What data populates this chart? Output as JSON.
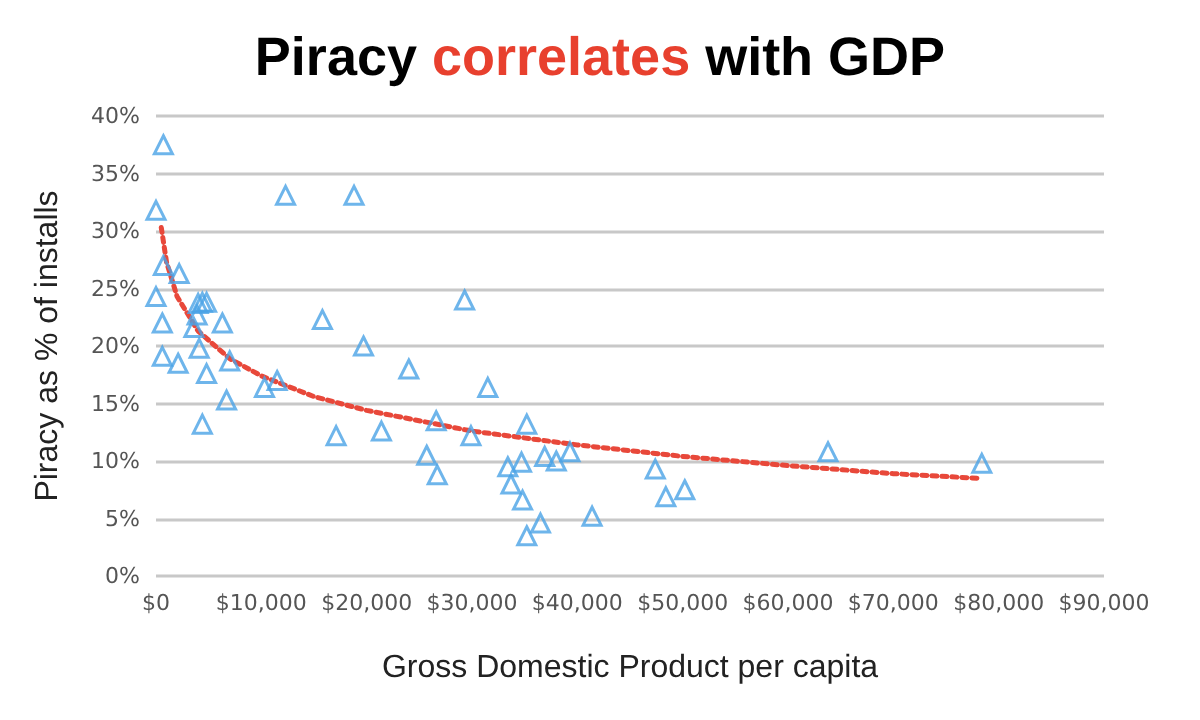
{
  "chart_data": {
    "type": "scatter",
    "title": "Piracy correlates with GDP",
    "xlabel": "Gross Domestic Product per capita",
    "ylabel": "Piracy as % of installs",
    "xlim": [
      0,
      90000
    ],
    "xticks": [
      {
        "value": 0,
        "label": "$0"
      },
      {
        "value": 10000,
        "label": "$10,000"
      },
      {
        "value": 20000,
        "label": "$20,000"
      },
      {
        "value": 30000,
        "label": "$30,000"
      },
      {
        "value": 40000,
        "label": "$40,000"
      },
      {
        "value": 50000,
        "label": "$50,000"
      },
      {
        "value": 60000,
        "label": "$60,000"
      },
      {
        "value": 70000,
        "label": "$70,000"
      },
      {
        "value": 80000,
        "label": "$80,000"
      },
      {
        "value": 90000,
        "label": "$90,000"
      }
    ],
    "ylim": [
      0,
      40
    ],
    "yticks": [
      {
        "value": 0,
        "label": "0%"
      },
      {
        "value": 5,
        "label": "5%"
      },
      {
        "value": 10,
        "label": "10%"
      },
      {
        "value": 15,
        "label": "15%"
      },
      {
        "value": 20,
        "label": "20%"
      },
      {
        "value": 25,
        "label": "25%"
      },
      {
        "value": 30,
        "label": "30%"
      },
      {
        "value": 35,
        "label": "35%"
      },
      {
        "value": 40,
        "label": "40%"
      }
    ],
    "grid": "y",
    "series": [
      {
        "color": "#4aa3e6",
        "marker": "triangle",
        "x": [
          700,
          12300,
          18800,
          0,
          700,
          2200,
          0,
          4000,
          4400,
          4800,
          3900,
          600,
          3600,
          6300,
          15800,
          19700,
          600,
          2100,
          4100,
          4800,
          7000,
          6700,
          10300,
          11500,
          4400,
          17100,
          21400,
          24000,
          29300,
          31500,
          26600,
          29900,
          35200,
          25700,
          26700,
          33400,
          34700,
          33700,
          34800,
          35200,
          36500,
          36900,
          38000,
          39300,
          41400,
          47400,
          48400,
          50200,
          63800,
          78400
        ],
        "values": [
          37.5,
          33.1,
          33.1,
          31.8,
          27,
          26.3,
          24.3,
          23.7,
          23.8,
          23.8,
          22.7,
          22,
          21.6,
          22,
          22.3,
          20,
          19.1,
          18.5,
          19.8,
          17.6,
          18.7,
          15.3,
          16.4,
          17,
          13.2,
          12.2,
          12.6,
          18,
          24,
          16.4,
          13.5,
          12.2,
          13.2,
          10.5,
          8.8,
          9.5,
          9.9,
          8,
          6.6,
          3.5,
          4.6,
          10.4,
          10,
          10.8,
          5.2,
          9.3,
          6.9,
          7.5,
          10.8,
          9.8
        ]
      },
      {
        "type": "line",
        "color": "#e8483a",
        "marker": "none",
        "line_style": "dotted",
        "x": [
          500,
          1000,
          2000,
          4000,
          7000,
          10000,
          15000,
          20000,
          30000,
          40000,
          50000,
          60000,
          70000,
          78000
        ],
        "values": [
          30.3,
          27.3,
          24.3,
          21.3,
          18.9,
          17.4,
          15.6,
          14.4,
          12.6,
          11.4,
          10.4,
          9.6,
          8.9,
          8.5
        ]
      }
    ]
  }
}
